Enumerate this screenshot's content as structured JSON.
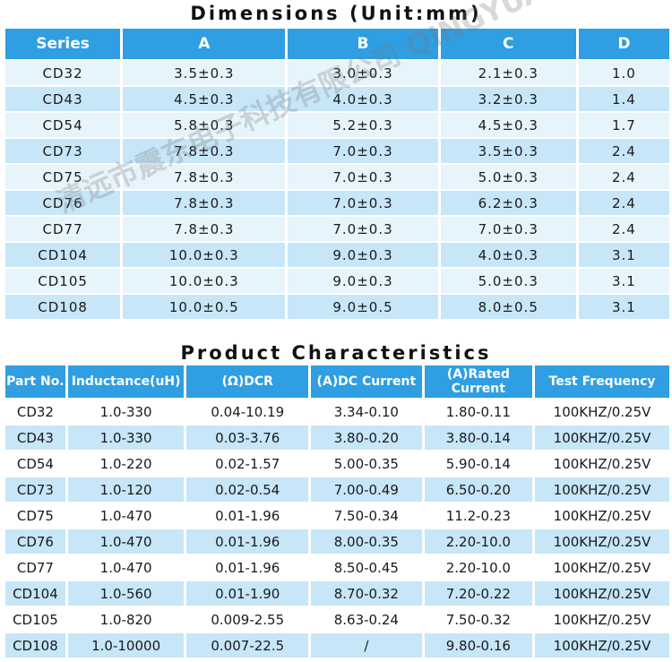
{
  "dimensions": {
    "title": "Dimensions (Unit:mm)",
    "headers": [
      "Series",
      "A",
      "B",
      "C",
      "D"
    ],
    "rows": [
      [
        "CD32",
        "3.5±0.3",
        "3.0±0.3",
        "2.1±0.3",
        "1.0"
      ],
      [
        "CD43",
        "4.5±0.3",
        "4.0±0.3",
        "3.2±0.3",
        "1.4"
      ],
      [
        "CD54",
        "5.8±0.3",
        "5.2±0.3",
        "4.5±0.3",
        "1.7"
      ],
      [
        "CD73",
        "7.8±0.3",
        "7.0±0.3",
        "3.5±0.3",
        "2.4"
      ],
      [
        "CD75",
        "7.8±0.3",
        "7.0±0.3",
        "5.0±0.3",
        "2.4"
      ],
      [
        "CD76",
        "7.8±0.3",
        "7.0±0.3",
        "6.2±0.3",
        "2.4"
      ],
      [
        "CD77",
        "7.8±0.3",
        "7.0±0.3",
        "7.0±0.3",
        "2.4"
      ],
      [
        "CD104",
        "10.0±0.3",
        "9.0±0.3",
        "4.0±0.3",
        "3.1"
      ],
      [
        "CD105",
        "10.0±0.3",
        "9.0±0.3",
        "5.0±0.3",
        "3.1"
      ],
      [
        "CD108",
        "10.0±0.5",
        "9.0±0.5",
        "8.0±0.5",
        "3.1"
      ]
    ]
  },
  "characteristics": {
    "title": "Product Characteristics",
    "headers": [
      "Part No.",
      "Inductance(uH)",
      "(Ω)DCR",
      "(A)DC Current",
      "(A)Rated Current",
      "Test Frequency"
    ],
    "rows": [
      [
        "CD32",
        "1.0-330",
        "0.04-10.19",
        "3.34-0.10",
        "1.80-0.11",
        "100KHZ/0.25V"
      ],
      [
        "CD43",
        "1.0-330",
        "0.03-3.76",
        "3.80-0.20",
        "3.80-0.14",
        "100KHZ/0.25V"
      ],
      [
        "CD54",
        "1.0-220",
        "0.02-1.57",
        "5.00-0.35",
        "5.90-0.14",
        "100KHZ/0.25V"
      ],
      [
        "CD73",
        "1.0-120",
        "0.02-0.54",
        "7.00-0.49",
        "6.50-0.20",
        "100KHZ/0.25V"
      ],
      [
        "CD75",
        "1.0-470",
        "0.01-1.96",
        "7.50-0.34",
        "11.2-0.23",
        "100KHZ/0.25V"
      ],
      [
        "CD76",
        "1.0-470",
        "0.01-1.96",
        "8.00-0.35",
        "2.20-10.0",
        "100KHZ/0.25V"
      ],
      [
        "CD77",
        "1.0-470",
        "0.01-1.96",
        "8.50-0.45",
        "2.20-10.0",
        "100KHZ/0.25V"
      ],
      [
        "CD104",
        "1.0-560",
        "0.01-1.90",
        "8.70-0.32",
        "7.20-0.22",
        "100KHZ/0.25V"
      ],
      [
        "CD105",
        "1.0-820",
        "0.009-2.55",
        "8.63-0.24",
        "7.50-0.32",
        "100KHZ/0.25V"
      ],
      [
        "CD108",
        "1.0-10000",
        "0.007-22.5",
        "/",
        "9.80-0.16",
        "100KHZ/0.25V"
      ]
    ]
  },
  "watermark": {
    "text1": "清远市震东电子科技有限公司 QINGYUAN ZOOMDO ELECTRONICS TECHNOLOGY CO.,LTD"
  }
}
